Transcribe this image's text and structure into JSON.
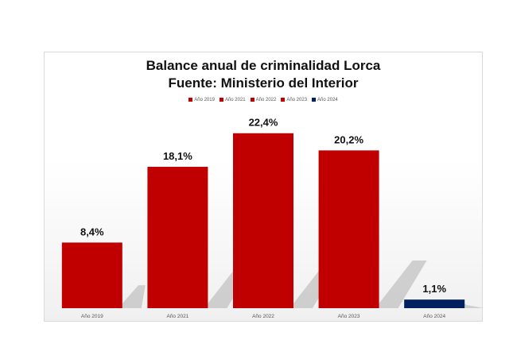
{
  "chart_data": {
    "type": "bar",
    "title": "Balance anual de criminalidad Lorca",
    "subtitle": "Fuente: Ministerio del Interior",
    "categories": [
      "Año 2019",
      "Año 2021",
      "Año 2022",
      "Año 2023",
      "Año 2024"
    ],
    "values": [
      8.4,
      18.1,
      22.4,
      20.2,
      1.1
    ],
    "data_labels": [
      "8,4%",
      "18,1%",
      "22,4%",
      "20,2%",
      "1,1%"
    ],
    "colors": [
      "#c00000",
      "#c00000",
      "#c00000",
      "#c00000",
      "#002060"
    ],
    "legend": [
      "Año 2019",
      "Año 2021",
      "Año 2022",
      "Año 2023",
      "Año 2024"
    ],
    "legend_position": "top",
    "ylim": [
      0,
      24
    ],
    "grid": false,
    "xlabel": "",
    "ylabel": ""
  }
}
